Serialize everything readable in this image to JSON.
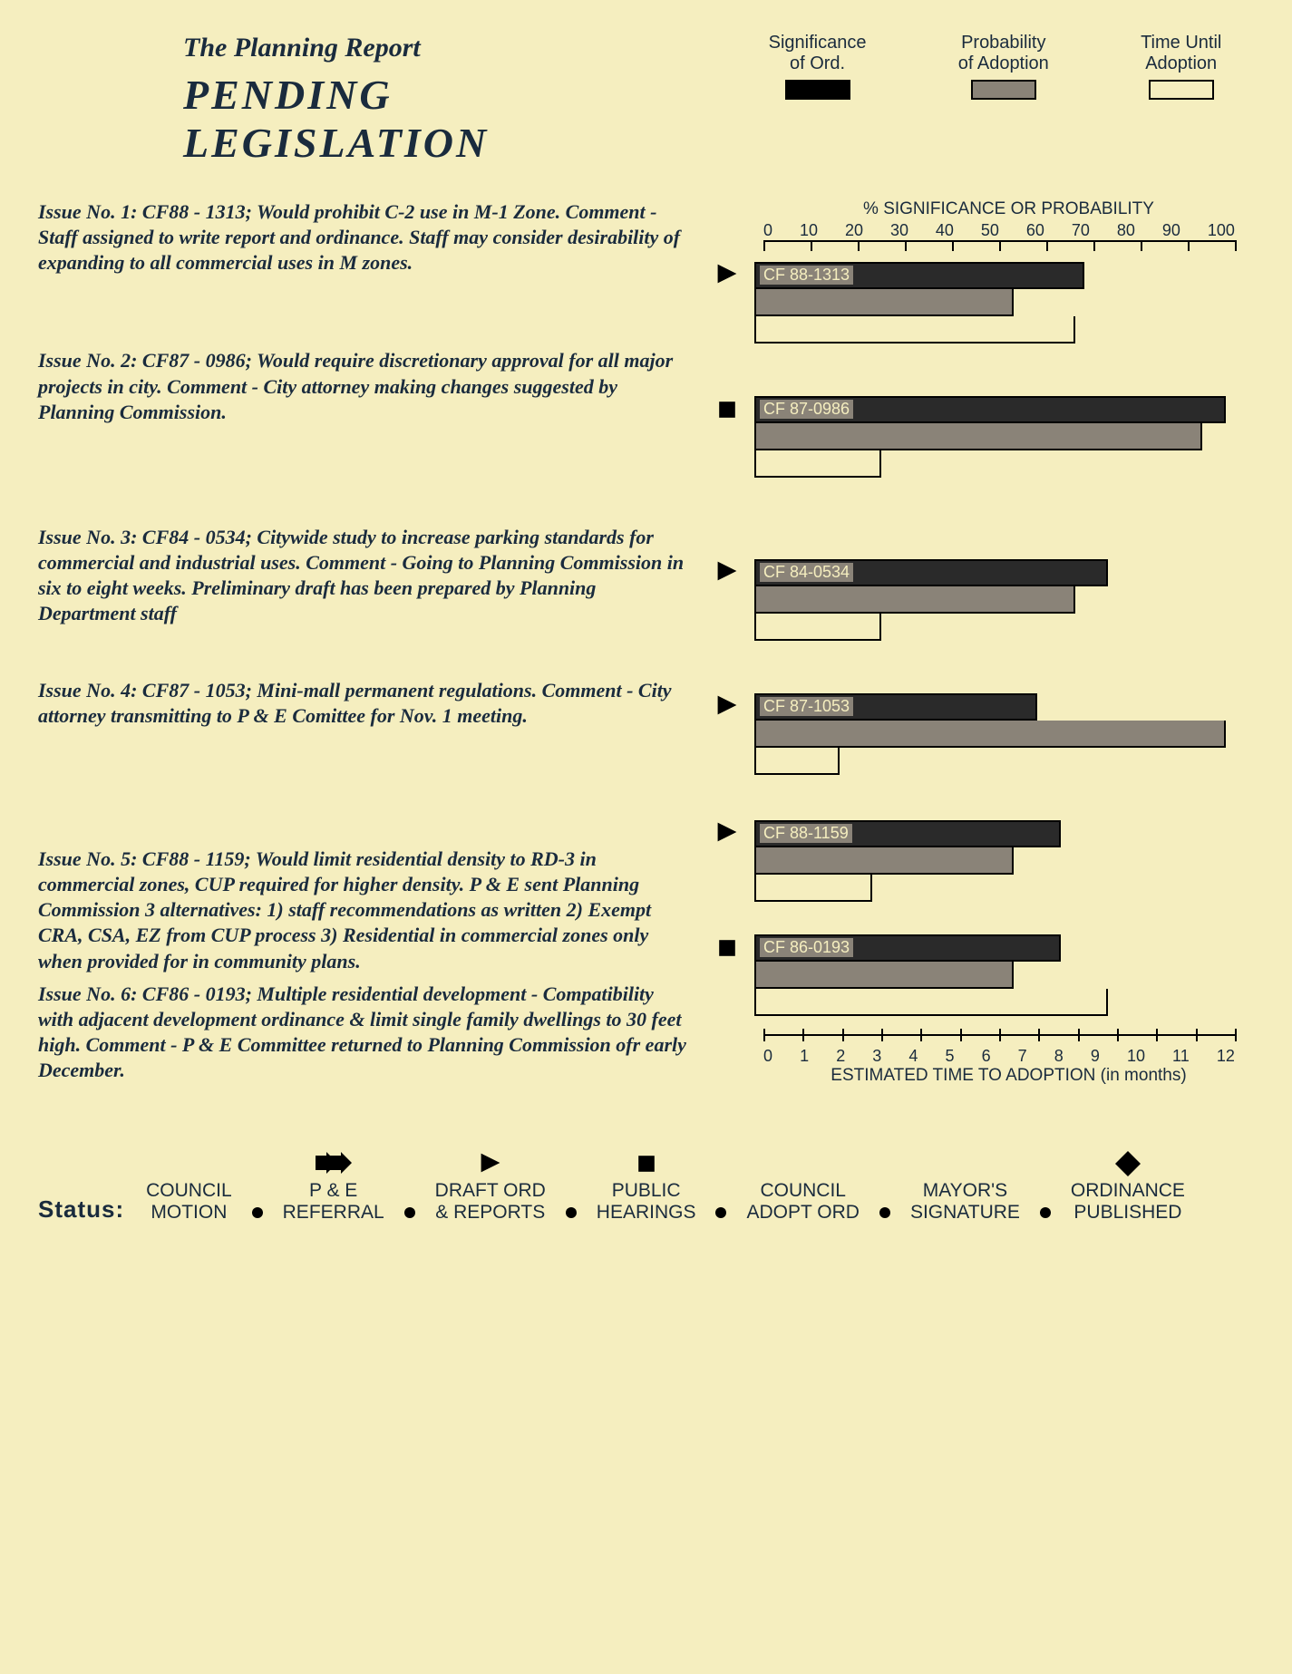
{
  "header": {
    "supertitle": "The Planning Report",
    "title": "PENDING  LEGISLATION"
  },
  "colors": {
    "background": "#f5eebf",
    "ink": "#1a2b3d",
    "bar_black": "#2a2a2a",
    "bar_gray": "#8a8378",
    "bar_white": "#f5eebf",
    "border": "#000000"
  },
  "legend": {
    "items": [
      {
        "label_line1": "Significance",
        "label_line2": "of Ord.",
        "swatch": "black"
      },
      {
        "label_line1": "Probability",
        "label_line2": "of Adoption",
        "swatch": "gray"
      },
      {
        "label_line1": "Time Until",
        "label_line2": "Adoption",
        "swatch": "white"
      }
    ]
  },
  "top_axis": {
    "title": "% SIGNIFICANCE OR PROBABILITY",
    "min": 0,
    "max": 100,
    "step": 10,
    "ticks": [
      "0",
      "10",
      "20",
      "30",
      "40",
      "50",
      "60",
      "70",
      "80",
      "90",
      "100"
    ]
  },
  "bottom_axis": {
    "title": "ESTIMATED TIME TO ADOPTION (in months)",
    "min": 0,
    "max": 12,
    "step": 1,
    "ticks": [
      "0",
      "1",
      "2",
      "3",
      "4",
      "5",
      "6",
      "7",
      "8",
      "9",
      "10",
      "11",
      "12"
    ]
  },
  "issues": [
    {
      "text": "Issue No. 1:   CF88 - 1313;   Would prohibit C-2 use in M-1 Zone.   Comment - Staff assigned to write report and ordinance.   Staff may consider desirability of expanding to all commercial uses in M zones.",
      "bar_label": "CF 88-1313",
      "status_icon": "triangle",
      "significance_pct": 70,
      "probability_pct": 55,
      "time_months": 8,
      "time_pct_on_top_scale": 68
    },
    {
      "text": "Issue No. 2:   CF87 - 0986;   Would require discretionary approval for all major projects in city.     Comment - City attorney making changes suggested by Planning Commission.",
      "bar_label": "CF 87-0986",
      "status_icon": "square",
      "significance_pct": 100,
      "probability_pct": 95,
      "time_months": 3,
      "time_pct_on_top_scale": 27
    },
    {
      "text": "Issue No. 3:   CF84 - 0534;   Citywide study to increase parking standards for commercial and industrial uses.     Comment - Going to Planning Commission in six to eight weeks. Preliminary draft has been prepared by Planning Department staff",
      "bar_label": "CF 84-0534",
      "status_icon": "triangle",
      "significance_pct": 75,
      "probability_pct": 68,
      "time_months": 3,
      "time_pct_on_top_scale": 27
    },
    {
      "text": "Issue No. 4:   CF87 - 1053;   Mini-mall permanent regulations.   Comment - City attorney transmitting to P & E Comittee for Nov. 1 meeting.",
      "bar_label": "CF 87-1053",
      "status_icon": "triangle",
      "significance_pct": 60,
      "probability_pct": 100,
      "time_months": 2,
      "time_pct_on_top_scale": 18
    },
    {
      "text": "Issue No. 5:   CF88 - 1159;   Would limit residential density to RD-3 in commercial zones, CUP required for higher density.   P & E sent Planning Commission 3 alternatives: 1) staff recommendations as written 2) Exempt CRA, CSA, EZ from CUP process 3) Residential in commercial zones only when provided for in community plans.",
      "bar_label": "CF 88-1159",
      "status_icon": "triangle",
      "significance_pct": 65,
      "probability_pct": 55,
      "time_months": 3,
      "time_pct_on_top_scale": 25
    },
    {
      "text": "Issue No. 6:   CF86 - 0193;   Multiple residential development - Compatibility with adjacent development ordinance & limit single family dwellings to 30 feet high.     Comment - P & E Committee returned to Planning Commission ofr early December.",
      "bar_label": "CF 86-0193",
      "status_icon": "square",
      "significance_pct": 65,
      "probability_pct": 55,
      "time_months": 9,
      "time_pct_on_top_scale": 75
    }
  ],
  "status_legend": {
    "header": "Status:",
    "items": [
      {
        "icon": "none",
        "line1": "COUNCIL",
        "line2": "MOTION"
      },
      {
        "icon": "arrow2",
        "line1": "P & E",
        "line2": "REFERRAL"
      },
      {
        "icon": "triangle",
        "line1": "DRAFT ORD",
        "line2": "& REPORTS"
      },
      {
        "icon": "square",
        "line1": "PUBLIC",
        "line2": "HEARINGS"
      },
      {
        "icon": "none",
        "line1": "COUNCIL",
        "line2": "ADOPT ORD"
      },
      {
        "icon": "none",
        "line1": "MAYOR'S",
        "line2": "SIGNATURE"
      },
      {
        "icon": "diamond",
        "line1": "ORDINANCE",
        "line2": "PUBLISHED"
      }
    ]
  }
}
